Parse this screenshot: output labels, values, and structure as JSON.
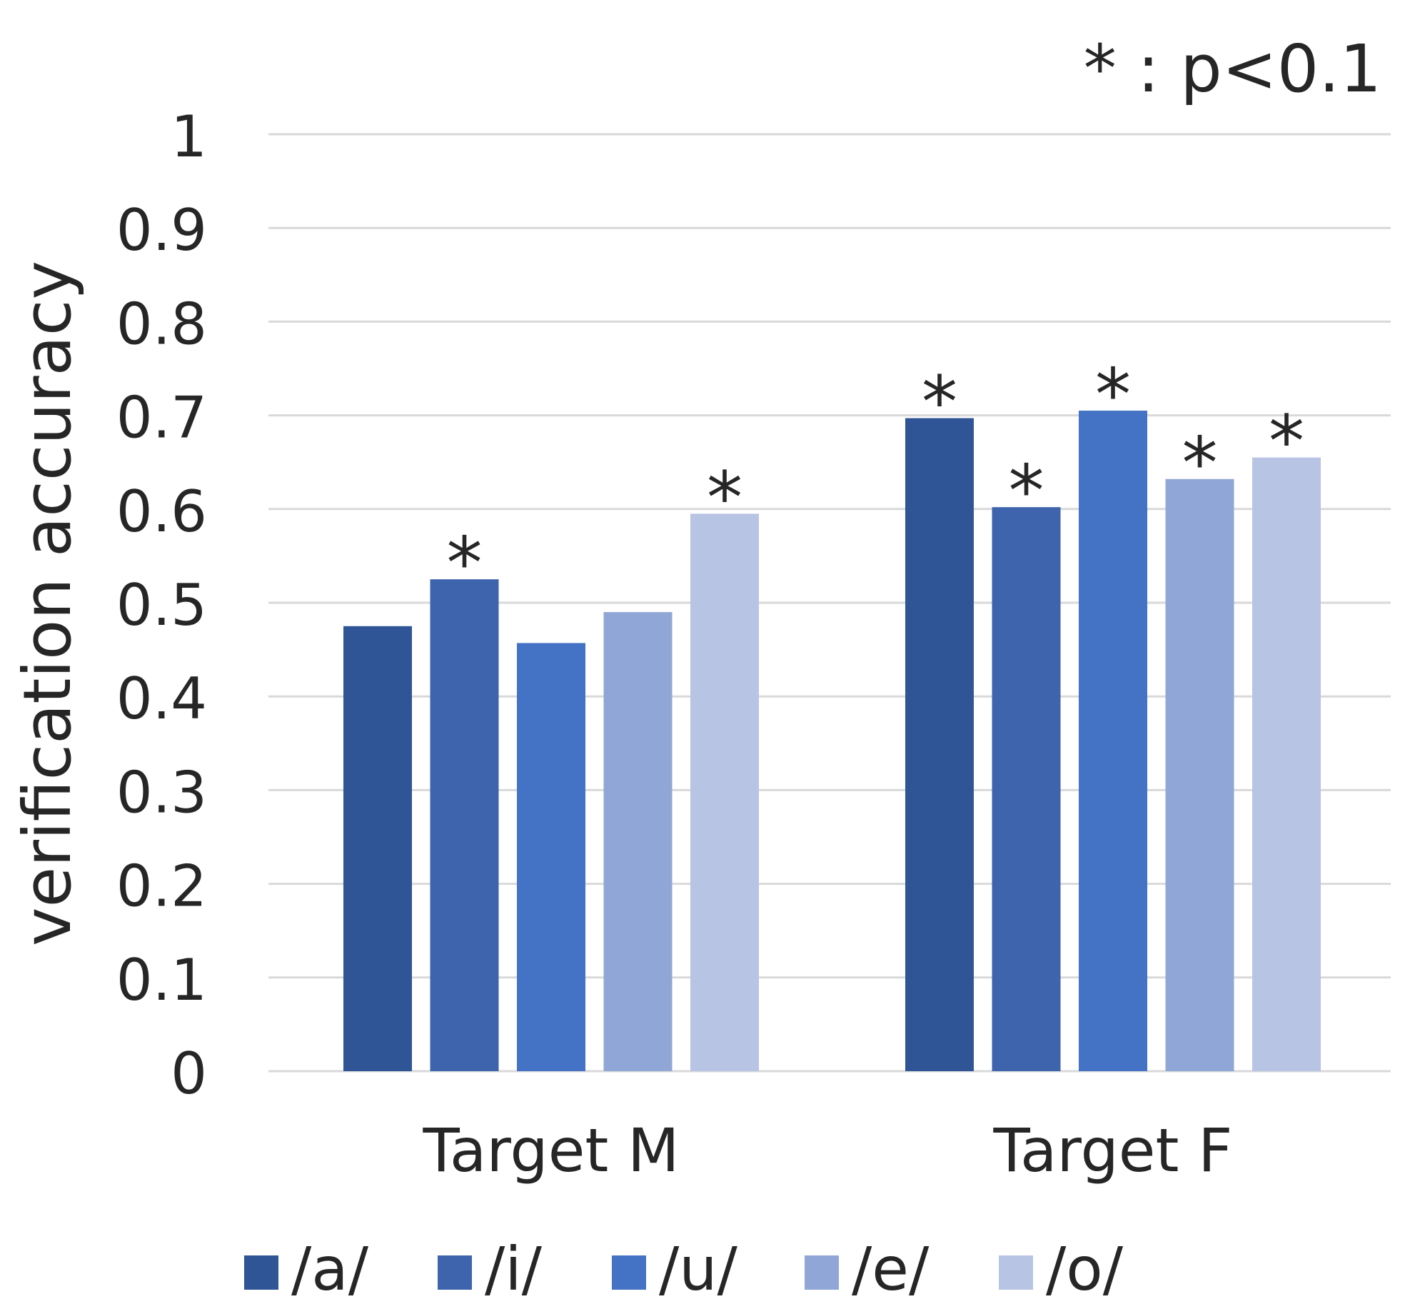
{
  "chart_data": {
    "type": "bar",
    "title": "",
    "annotation": "* : p<0.1",
    "xlabel": "",
    "ylabel": "verification accuracy",
    "ylim": [
      0,
      1
    ],
    "yticks": [
      "0",
      "0.1",
      "0.2",
      "0.3",
      "0.4",
      "0.5",
      "0.6",
      "0.7",
      "0.8",
      "0.9",
      "1"
    ],
    "ytick_values": [
      0,
      0.1,
      0.2,
      0.3,
      0.4,
      0.5,
      0.6,
      0.7,
      0.8,
      0.9,
      1
    ],
    "grid": true,
    "legend_position": "bottom",
    "categories": [
      "Target M",
      "Target F"
    ],
    "series": [
      {
        "name": "/a/",
        "color": "#2f5597",
        "values": [
          0.475,
          0.697
        ],
        "significant": [
          false,
          true
        ]
      },
      {
        "name": "/i/",
        "color": "#3d64ad",
        "values": [
          0.525,
          0.602
        ],
        "significant": [
          true,
          true
        ]
      },
      {
        "name": "/u/",
        "color": "#4472c4",
        "values": [
          0.457,
          0.705
        ],
        "significant": [
          false,
          true
        ]
      },
      {
        "name": "/e/",
        "color": "#8fa6d6",
        "values": [
          0.49,
          0.632
        ],
        "significant": [
          false,
          true
        ]
      },
      {
        "name": "/o/",
        "color": "#b8c4e3",
        "values": [
          0.595,
          0.655
        ],
        "significant": [
          true,
          true
        ]
      }
    ],
    "significance_marker": "*"
  }
}
